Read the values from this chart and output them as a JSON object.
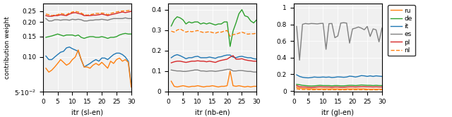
{
  "colors": {
    "ru": "#FF7F0E",
    "de": "#2CA02C",
    "it": "#1F77B4",
    "es": "#7F7F7F",
    "pl": "#D62728",
    "nl": "#FF7F0E"
  },
  "figsize": [
    6.4,
    1.66
  ],
  "dpi": 100,
  "sl_ru": [
    0.08,
    0.074,
    0.077,
    0.082,
    0.088,
    0.095,
    0.09,
    0.085,
    0.088,
    0.095,
    0.1,
    0.115,
    0.095,
    0.082,
    0.082,
    0.08,
    0.085,
    0.088,
    0.085,
    0.09,
    0.085,
    0.08,
    0.092,
    0.088,
    0.095,
    0.098,
    0.092,
    0.095,
    0.09,
    0.055
  ],
  "sl_de": [
    0.148,
    0.15,
    0.152,
    0.155,
    0.158,
    0.155,
    0.152,
    0.155,
    0.155,
    0.155,
    0.152,
    0.155,
    0.148,
    0.145,
    0.148,
    0.15,
    0.15,
    0.148,
    0.148,
    0.15,
    0.148,
    0.145,
    0.148,
    0.148,
    0.15,
    0.155,
    0.158,
    0.16,
    0.158,
    0.158
  ],
  "sl_it": [
    0.102,
    0.095,
    0.095,
    0.1,
    0.105,
    0.11,
    0.112,
    0.12,
    0.122,
    0.118,
    0.115,
    0.112,
    0.095,
    0.082,
    0.085,
    0.088,
    0.092,
    0.095,
    0.092,
    0.098,
    0.098,
    0.095,
    0.1,
    0.105,
    0.108,
    0.108,
    0.105,
    0.1,
    0.092,
    0.058
  ],
  "sl_es": [
    0.215,
    0.205,
    0.205,
    0.21,
    0.21,
    0.208,
    0.21,
    0.21,
    0.208,
    0.212,
    0.21,
    0.212,
    0.21,
    0.205,
    0.205,
    0.208,
    0.208,
    0.21,
    0.21,
    0.212,
    0.21,
    0.208,
    0.212,
    0.215,
    0.215,
    0.215,
    0.215,
    0.218,
    0.215,
    0.215
  ],
  "sl_pl": [
    0.228,
    0.225,
    0.225,
    0.228,
    0.228,
    0.232,
    0.23,
    0.228,
    0.235,
    0.24,
    0.242,
    0.238,
    0.235,
    0.228,
    0.228,
    0.228,
    0.23,
    0.23,
    0.232,
    0.235,
    0.232,
    0.228,
    0.232,
    0.235,
    0.238,
    0.242,
    0.245,
    0.242,
    0.245,
    0.248
  ],
  "sl_nl": [
    0.235,
    0.232,
    0.228,
    0.23,
    0.232,
    0.238,
    0.235,
    0.232,
    0.24,
    0.245,
    0.248,
    0.245,
    0.24,
    0.232,
    0.23,
    0.232,
    0.235,
    0.238,
    0.238,
    0.24,
    0.238,
    0.232,
    0.238,
    0.242,
    0.245,
    0.248,
    0.25,
    0.25,
    0.252,
    0.255
  ],
  "nb_ru": [
    0.05,
    0.025,
    0.022,
    0.025,
    0.028,
    0.025,
    0.022,
    0.025,
    0.025,
    0.028,
    0.025,
    0.022,
    0.025,
    0.025,
    0.028,
    0.025,
    0.022,
    0.025,
    0.025,
    0.028,
    0.1,
    0.028,
    0.025,
    0.028,
    0.025,
    0.022,
    0.025,
    0.022,
    0.025,
    0.025
  ],
  "nb_de": [
    0.32,
    0.35,
    0.365,
    0.36,
    0.35,
    0.33,
    0.34,
    0.335,
    0.34,
    0.34,
    0.33,
    0.335,
    0.33,
    0.335,
    0.33,
    0.325,
    0.33,
    0.33,
    0.34,
    0.34,
    0.22,
    0.295,
    0.335,
    0.38,
    0.4,
    0.37,
    0.365,
    0.345,
    0.335,
    0.35
  ],
  "nb_it": [
    0.165,
    0.175,
    0.18,
    0.175,
    0.168,
    0.16,
    0.165,
    0.165,
    0.17,
    0.172,
    0.165,
    0.165,
    0.165,
    0.168,
    0.165,
    0.162,
    0.168,
    0.17,
    0.175,
    0.178,
    0.178,
    0.168,
    0.165,
    0.17,
    0.172,
    0.168,
    0.165,
    0.165,
    0.16,
    0.158
  ],
  "nb_es": [
    0.105,
    0.102,
    0.1,
    0.1,
    0.098,
    0.098,
    0.1,
    0.102,
    0.105,
    0.105,
    0.1,
    0.1,
    0.098,
    0.1,
    0.1,
    0.098,
    0.1,
    0.102,
    0.105,
    0.108,
    0.108,
    0.1,
    0.1,
    0.102,
    0.102,
    0.1,
    0.098,
    0.098,
    0.095,
    0.095
  ],
  "nb_pl": [
    0.14,
    0.145,
    0.148,
    0.148,
    0.145,
    0.142,
    0.145,
    0.148,
    0.148,
    0.15,
    0.148,
    0.148,
    0.145,
    0.148,
    0.145,
    0.142,
    0.148,
    0.152,
    0.155,
    0.158,
    0.168,
    0.175,
    0.158,
    0.158,
    0.16,
    0.155,
    0.152,
    0.15,
    0.148,
    0.148
  ],
  "nb_nl": [
    0.295,
    0.29,
    0.3,
    0.305,
    0.298,
    0.29,
    0.295,
    0.292,
    0.295,
    0.298,
    0.292,
    0.288,
    0.29,
    0.292,
    0.288,
    0.285,
    0.29,
    0.29,
    0.295,
    0.298,
    0.27,
    0.278,
    0.28,
    0.285,
    0.29,
    0.285,
    0.28,
    0.282,
    0.282,
    0.285
  ],
  "gl_ru": [
    0.045,
    0.035,
    0.03,
    0.03,
    0.028,
    0.025,
    0.025,
    0.025,
    0.025,
    0.025,
    0.025,
    0.025,
    0.025,
    0.025,
    0.025,
    0.022,
    0.022,
    0.025,
    0.025,
    0.025,
    0.025,
    0.025,
    0.025,
    0.025,
    0.022,
    0.022,
    0.022,
    0.022,
    0.022,
    0.022
  ],
  "gl_de": [
    0.08,
    0.075,
    0.068,
    0.065,
    0.062,
    0.06,
    0.062,
    0.065,
    0.068,
    0.065,
    0.065,
    0.065,
    0.062,
    0.065,
    0.065,
    0.062,
    0.062,
    0.065,
    0.068,
    0.068,
    0.065,
    0.068,
    0.072,
    0.07,
    0.068,
    0.068,
    0.065,
    0.068,
    0.065,
    0.065
  ],
  "gl_it": [
    0.195,
    0.175,
    0.165,
    0.16,
    0.158,
    0.162,
    0.168,
    0.165,
    0.165,
    0.168,
    0.165,
    0.168,
    0.162,
    0.165,
    0.17,
    0.168,
    0.165,
    0.168,
    0.178,
    0.175,
    0.168,
    0.175,
    0.185,
    0.182,
    0.175,
    0.182,
    0.175,
    0.182,
    0.178,
    0.175
  ],
  "gl_es": [
    0.775,
    0.37,
    0.8,
    0.81,
    0.805,
    0.81,
    0.808,
    0.805,
    0.81,
    0.812,
    0.5,
    0.808,
    0.81,
    0.64,
    0.66,
    0.815,
    0.82,
    0.815,
    0.575,
    0.745,
    0.755,
    0.768,
    0.755,
    0.735,
    0.775,
    0.655,
    0.745,
    0.735,
    0.59,
    0.755
  ],
  "gl_pl": [
    0.065,
    0.052,
    0.048,
    0.048,
    0.045,
    0.042,
    0.045,
    0.048,
    0.05,
    0.048,
    0.048,
    0.048,
    0.045,
    0.048,
    0.048,
    0.045,
    0.045,
    0.048,
    0.05,
    0.05,
    0.048,
    0.05,
    0.052,
    0.052,
    0.05,
    0.05,
    0.048,
    0.05,
    0.048,
    0.048
  ],
  "gl_nl": [
    0.028,
    0.02,
    0.018,
    0.018,
    0.016,
    0.015,
    0.015,
    0.016,
    0.016,
    0.015,
    0.015,
    0.015,
    0.015,
    0.015,
    0.015,
    0.014,
    0.014,
    0.015,
    0.015,
    0.015,
    0.015,
    0.015,
    0.015,
    0.015,
    0.014,
    0.014,
    0.014,
    0.014,
    0.014,
    0.014
  ]
}
